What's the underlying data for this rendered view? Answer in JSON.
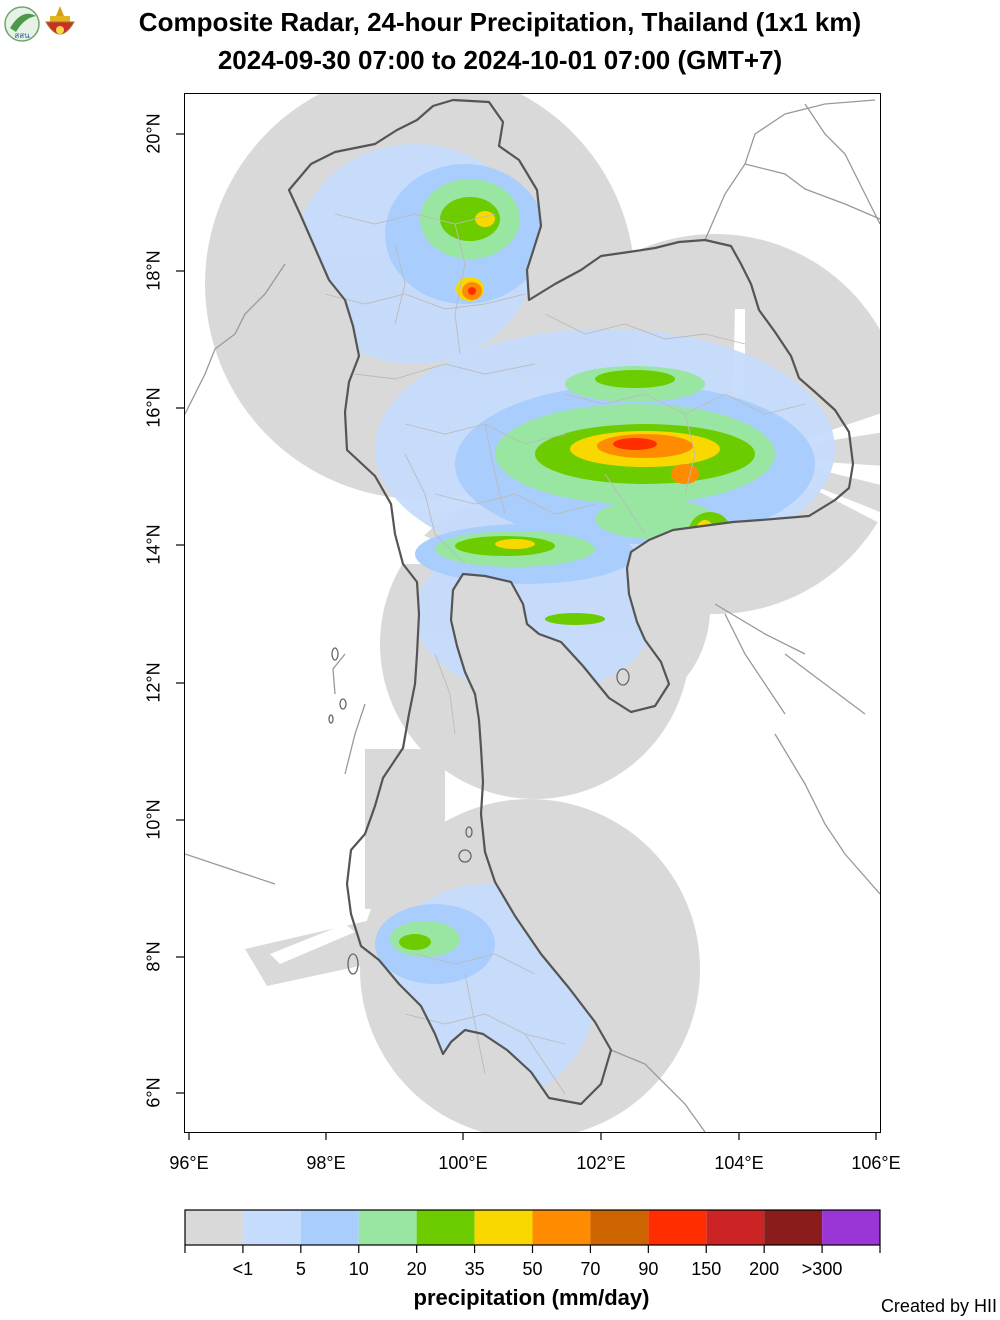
{
  "title_line1": "Composite Radar, 24-hour Precipitation, Thailand (1x1 km)",
  "title_line2": "2024-09-30 07:00 to 2024-10-01 07:00 (GMT+7)",
  "logo_text": "สสน",
  "y_axis": {
    "ticks": [
      "20°N",
      "18°N",
      "16°N",
      "14°N",
      "12°N",
      "10°N",
      "8°N",
      "6°N"
    ]
  },
  "x_axis": {
    "ticks": [
      "96°E",
      "98°E",
      "100°E",
      "102°E",
      "104°E",
      "106°E"
    ]
  },
  "legend": {
    "title": "precipitation (mm/day)",
    "colors": [
      "#d9d9d9",
      "#c6dcfc",
      "#a9cdfc",
      "#98e6a1",
      "#6dcc00",
      "#f9d800",
      "#ff8c00",
      "#cc6400",
      "#ff2d00",
      "#cc2424",
      "#8b1c1c",
      "#9a36d6"
    ],
    "labels": [
      "<1",
      "5",
      "10",
      "20",
      "35",
      "50",
      "70",
      "90",
      "150",
      "200",
      ">300"
    ]
  },
  "credit": "Created by HII"
}
